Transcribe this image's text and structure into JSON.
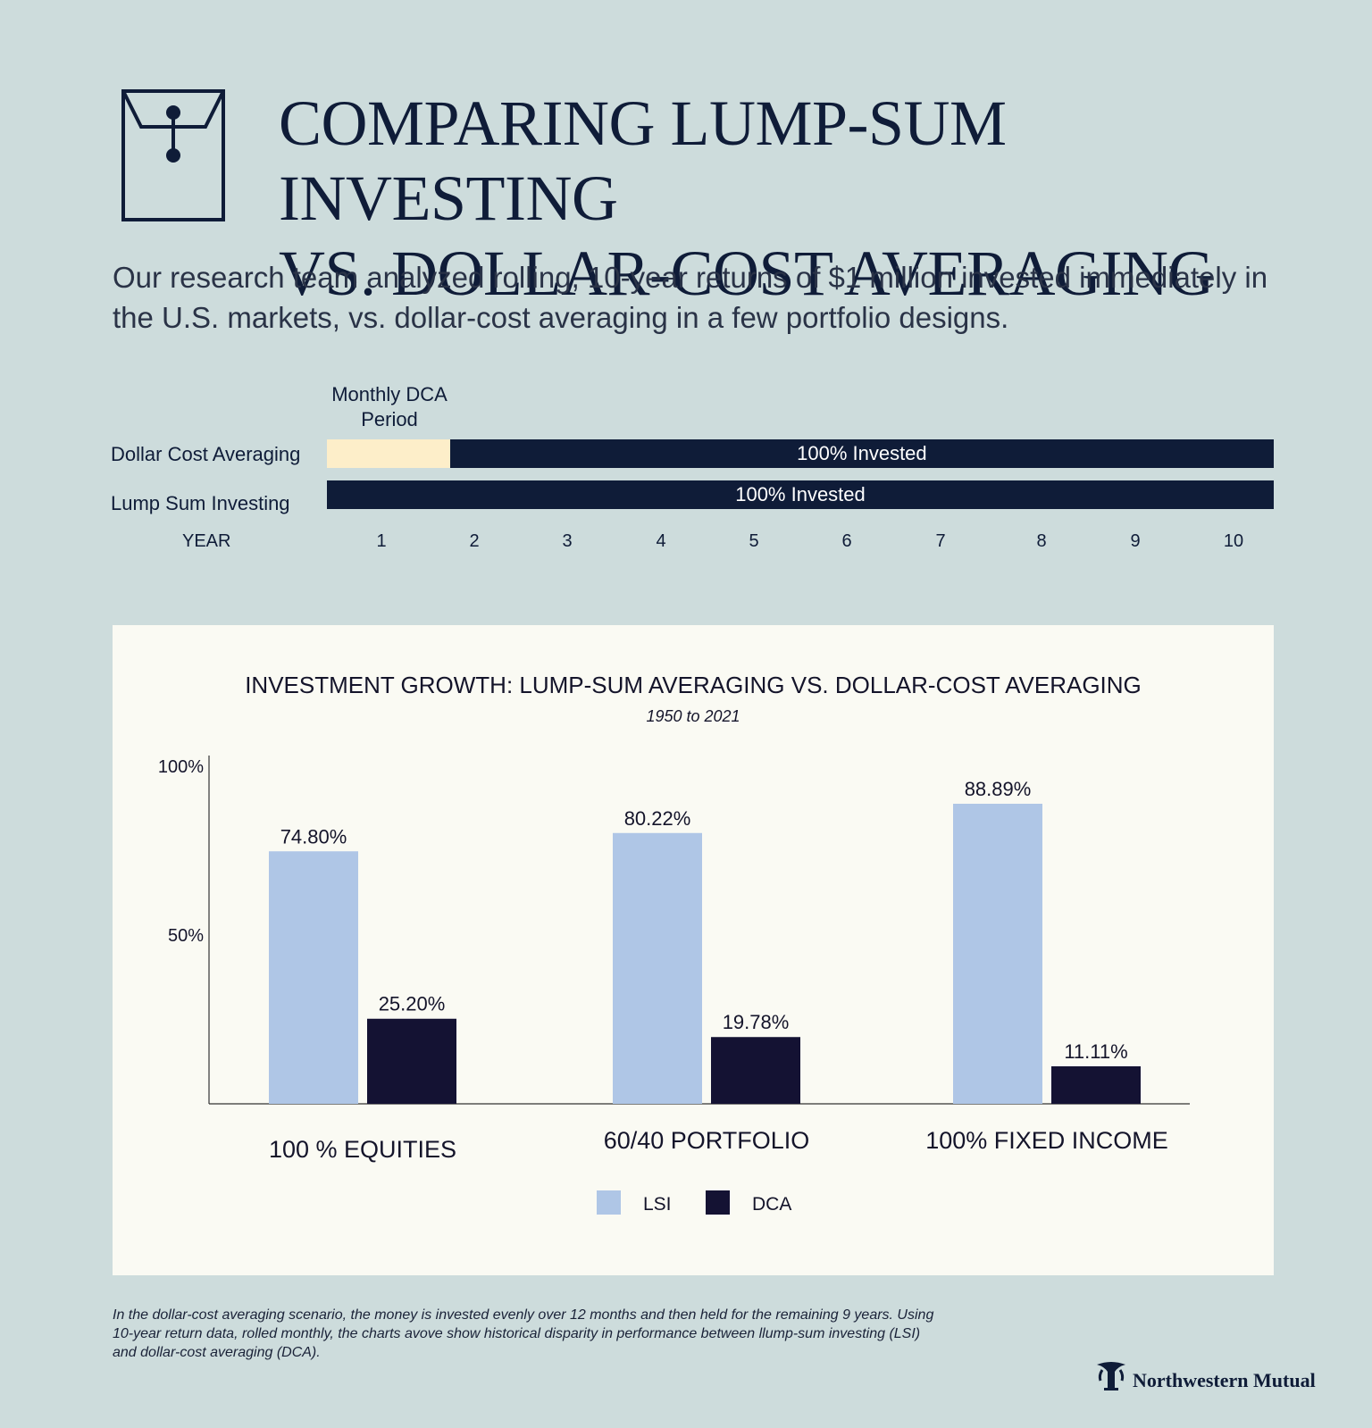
{
  "header": {
    "title_line1": "COMPARING LUMP-SUM INVESTING",
    "title_line2": "VS. DOLLAR-COST AVERAGING",
    "icon": "envelope-icon"
  },
  "intro": "Our research team analyzed rolling, 10-year returns of $1 million invested immediately in the U.S. markets, vs. dollar-cost averaging in a few portfolio designs.",
  "timeline": {
    "period_label_line1": "Monthly DCA",
    "period_label_line2": "Period",
    "rows": [
      {
        "label": "Dollar Cost Averaging",
        "bar_text": "100% Invested",
        "dca_period_years": 1.3
      },
      {
        "label": "Lump Sum Investing",
        "bar_text": "100% Invested"
      }
    ],
    "axis_label": "YEAR",
    "years": [
      "1",
      "2",
      "3",
      "4",
      "5",
      "6",
      "7",
      "8",
      "9",
      "10"
    ]
  },
  "chart_data": {
    "type": "bar",
    "title": "INVESTMENT GROWTH: LUMP-SUM AVERAGING VS. DOLLAR-COST AVERAGING",
    "subtitle": "1950 to 2021",
    "categories": [
      "100 % EQUITIES",
      "60/40 PORTFOLIO",
      "100% FIXED INCOME"
    ],
    "series": [
      {
        "name": "LSI",
        "values": [
          74.8,
          80.22,
          88.89
        ],
        "labels": [
          "74.80%",
          "80.22%",
          "88.89%"
        ],
        "color": "#afc6e6"
      },
      {
        "name": "DCA",
        "values": [
          25.2,
          19.78,
          11.11
        ],
        "labels": [
          "25.20%",
          "19.78%",
          "11.11%"
        ],
        "color": "#141233"
      }
    ],
    "yticks": [
      50,
      100
    ],
    "ytick_labels": [
      "50%",
      "100%"
    ],
    "ylim": [
      0,
      100
    ],
    "grid": false,
    "legend_position": "bottom-center"
  },
  "footnote": "In the dollar-cost averaging scenario, the money is invested evenly over 12 months and then held for the remaining 9 years. Using 10-year return data, rolled monthly, the charts avove show historical disparity in performance between llump-sum investing (LSI) and dollar-cost averaging (DCA).",
  "brand": {
    "name": "Northwestern Mutual",
    "icon": "northwestern-mutual-logo-icon"
  },
  "colors": {
    "background": "#cddcdc",
    "navy": "#0f1c38",
    "dca_period": "#fdeec9",
    "panel": "#fafaf3"
  }
}
